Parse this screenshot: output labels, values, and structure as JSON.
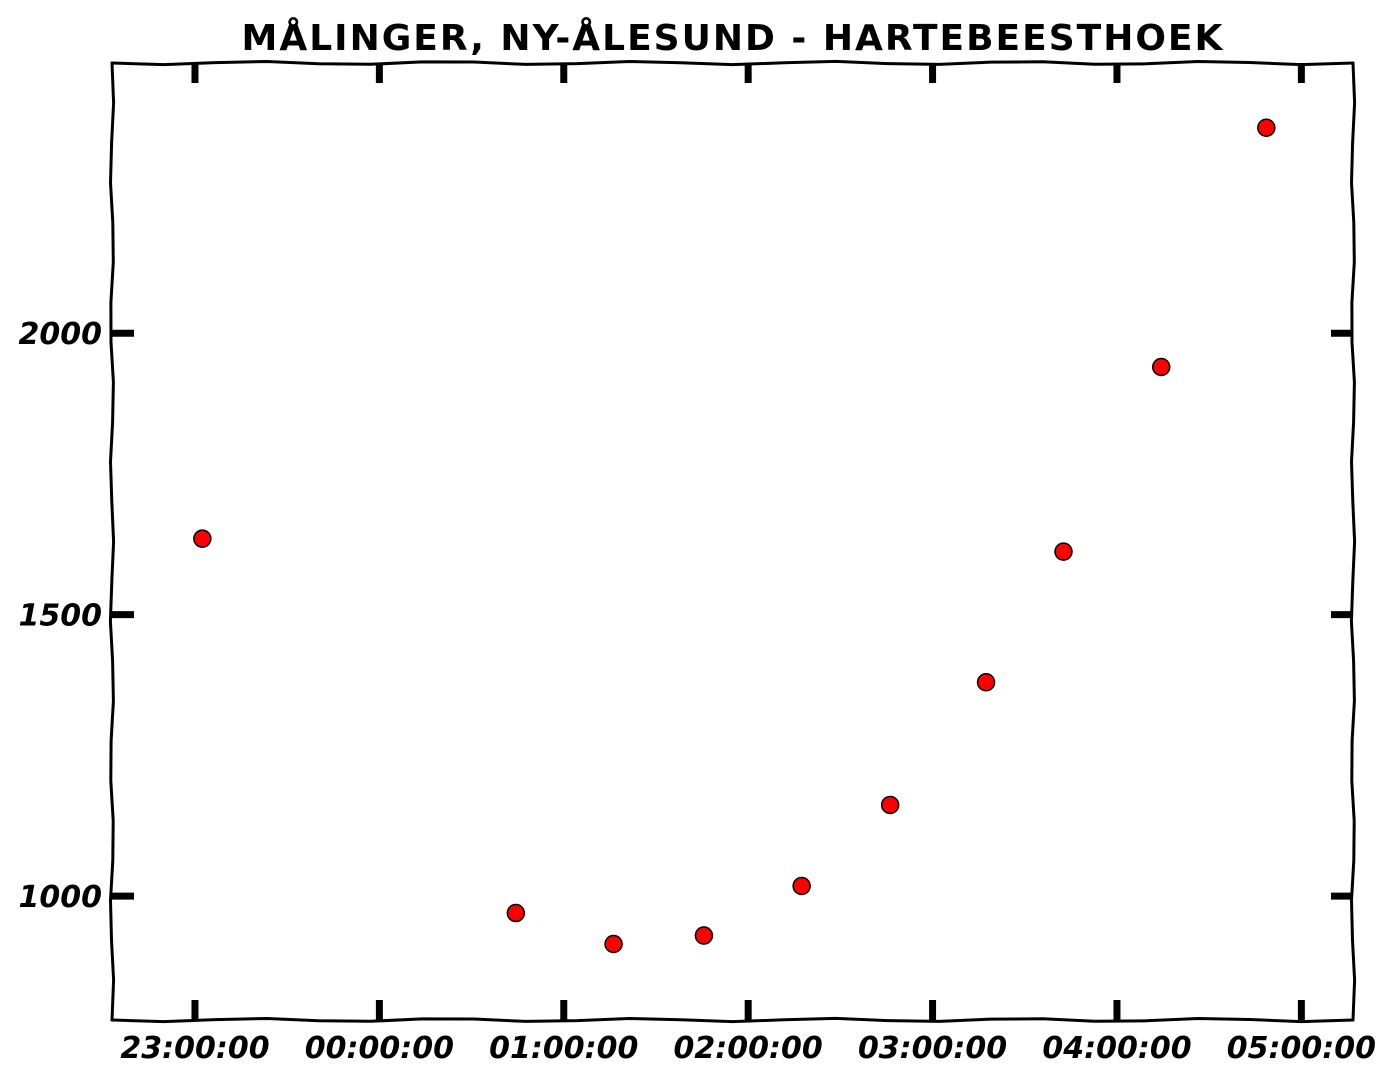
{
  "chart_data": {
    "type": "scatter",
    "title": "MÅLINGER, NY-ÅLESUND - HARTEBEESTHOEK",
    "xlabel": "",
    "ylabel": "",
    "x_ticks": [
      {
        "hours": 0,
        "label": "23:00:00"
      },
      {
        "hours": 1,
        "label": "00:00:00"
      },
      {
        "hours": 2,
        "label": "01:00:00"
      },
      {
        "hours": 3,
        "label": "02:00:00"
      },
      {
        "hours": 4,
        "label": "03:00:00"
      },
      {
        "hours": 5,
        "label": "04:00:00"
      },
      {
        "hours": 6,
        "label": "05:00:00"
      }
    ],
    "y_ticks": [
      {
        "value": 1000,
        "label": "1000"
      },
      {
        "value": 1500,
        "label": "1500"
      },
      {
        "value": 2000,
        "label": "2000"
      }
    ],
    "xlim": [
      -0.45,
      6.28
    ],
    "ylim": [
      780,
      2480
    ],
    "points": [
      {
        "x": 0.04,
        "y": 1635
      },
      {
        "x": 1.74,
        "y": 970
      },
      {
        "x": 2.27,
        "y": 915
      },
      {
        "x": 2.76,
        "y": 930
      },
      {
        "x": 3.29,
        "y": 1018
      },
      {
        "x": 3.77,
        "y": 1162
      },
      {
        "x": 4.29,
        "y": 1380
      },
      {
        "x": 4.71,
        "y": 1612
      },
      {
        "x": 5.24,
        "y": 1940
      },
      {
        "x": 5.81,
        "y": 2365
      }
    ],
    "marker_color": "#ff0000",
    "marker_edge_color": "#000000",
    "grid": false,
    "legend": false
  }
}
